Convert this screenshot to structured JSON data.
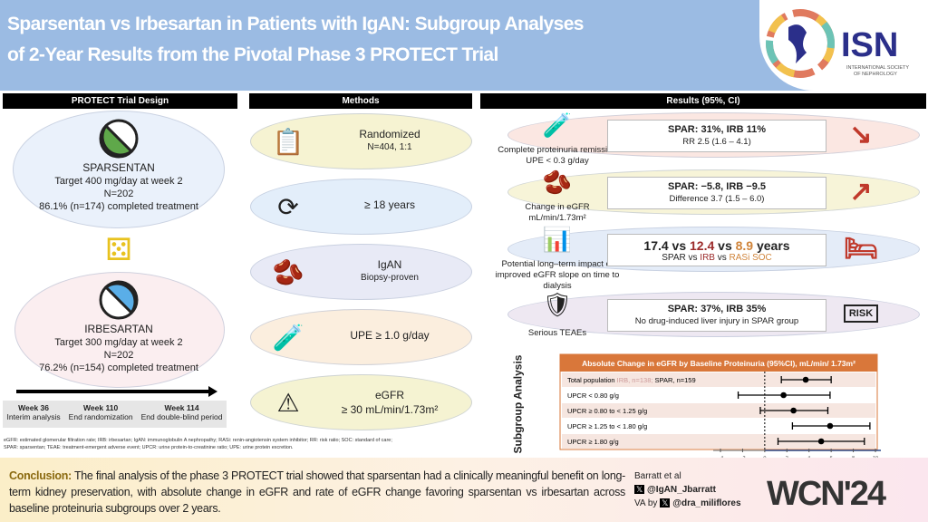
{
  "header": {
    "title_line1": "Sparsentan vs Irbesartan in Patients with IgAN: Subgroup Analyses",
    "title_line2": "of 2-Year Results from the Pivotal Phase 3 PROTECT Trial",
    "logo_text": "ISN",
    "logo_sub1": "INTERNATIONAL SOCIETY",
    "logo_sub2": "OF NEPHROLOGY"
  },
  "design": {
    "heading": "PROTECT Trial Design",
    "arms": [
      {
        "name": "SPARSENTAN",
        "target": "Target 400 mg/day at week 2",
        "n": "N=202",
        "completed": "86.1% (n=174) completed treatment",
        "color": "#5fa84a"
      },
      {
        "name": "IRBESARTAN",
        "target": "Target 300 mg/day at week 2",
        "n": "N=202",
        "completed": "76.2% (n=154) completed treatment",
        "color": "#5aaee8"
      }
    ],
    "timeline": [
      {
        "week": "Week 36",
        "label": "Interim analysis"
      },
      {
        "week": "Week 110",
        "label": "End randomization"
      },
      {
        "week": "Week 114",
        "label": "End double-blind period"
      }
    ]
  },
  "methods": {
    "heading": "Methods",
    "items": [
      {
        "title": "Randomized",
        "sub": "N=404, 1:1",
        "icon": "randomization-icon"
      },
      {
        "title": "≥ 18 years",
        "sub": "",
        "icon": "age-icon"
      },
      {
        "title": "IgAN",
        "sub": "Biopsy-proven",
        "icon": "kidney-biopsy-icon"
      },
      {
        "title": "UPE ≥ 1.0  g/day",
        "sub": "",
        "icon": "urine-test-icon"
      },
      {
        "title": "eGFR",
        "sub": "≥ 30 mL/min/1.73m²",
        "icon": "kidney-warning-icon"
      }
    ]
  },
  "results": {
    "heading": "Results (95%, CI)",
    "items": [
      {
        "label": "Complete proteinuria remission",
        "label2": "UPE < 0.3 g/day",
        "main": "SPAR: 31%, IRB 11%",
        "sub": "RR 2.5 (1.6 – 4.1)",
        "icon": "trend-down-icon"
      },
      {
        "label": "Change in eGFR",
        "label2": "mL/min/1.73m²",
        "main": "SPAR: −5.8, IRB −9.5",
        "sub": "Difference 3.7 (1.5 – 6.0)",
        "icon": "trend-up-icon"
      },
      {
        "label": "Potential long–term impact of",
        "label2": "improved eGFR slope on time to dialysis",
        "main_a": "17.4",
        "vs1": " vs ",
        "main_b": "12.4",
        "vs2": " vs ",
        "main_c": "8.9",
        "unit": " years",
        "sub_a": "SPAR",
        "svs1": " vs ",
        "sub_b": "IRB",
        "svs2": " vs ",
        "sub_c": "RASi SOC",
        "icon": "dialysis-icon"
      },
      {
        "label": "Serious TEAEs",
        "label2": "",
        "main": "SPAR: 37%, IRB 35%",
        "sub": "No drug-induced liver injury in SPAR group",
        "icon": "risk-icon",
        "risk": "RISK"
      }
    ],
    "colors": {
      "irb": "#9b2a2a",
      "rasi": "#d0843a"
    }
  },
  "chart_data": {
    "type": "forest",
    "title": "Absolute Change in eGFR by Baseline Proteinuria (95%CI), mL/min/ 1.73m²",
    "side_label": "Subgroup Analysis",
    "rows": [
      {
        "label": "Total population",
        "label_extra": " IRB, n=138; ",
        "label_extra2": "SPAR, n=159",
        "est": 3.7,
        "lo": 1.5,
        "hi": 6.0
      },
      {
        "label": "UPCR < 0.80 g/g",
        "est": 1.7,
        "lo": -2.4,
        "hi": 5.9
      },
      {
        "label": "UPCR ≥ 0.80 to < 1.25 g/g",
        "est": 2.6,
        "lo": -0.4,
        "hi": 5.7
      },
      {
        "label": "UPCR ≥ 1.25 to < 1.80 g/g",
        "est": 5.9,
        "lo": 2.5,
        "hi": 9.5
      },
      {
        "label": "UPCR ≥ 1.80 g/g",
        "est": 5.1,
        "lo": 1.2,
        "hi": 9.0
      }
    ],
    "xlim": [
      -4,
      10
    ],
    "xticks": [
      -4,
      -2,
      0,
      2,
      4,
      6,
      8,
      10
    ],
    "favors_left": "Favors IRB",
    "favors_right": "Favors SPAR",
    "header_color": "#d9773a"
  },
  "footnote": [
    "eGFR: estimated glomerular filtration rate; IRB: irbesartan; IgAN: immunoglobulin A nephropathy; RASi: renin-angiotensin system inhibitor; RR: risk ratio; SOC: standard of care;",
    "SPAR: sparsentan; TEAE: treatment-emergent adverse event; UPCR: urine protein-to-creatinine ratio; UPE: urine protein excretion."
  ],
  "conclusion": {
    "label": "Conclusion:",
    "text": " The final analysis of the phase 3 PROTECT trial showed that sparsentan had a clinically meaningful benefit on long-term kidney preservation, with absolute change in eGFR and rate of eGFR change favoring sparsentan vs irbesartan across baseline proteinuria subgroups over 2 years."
  },
  "credits": {
    "author": "Barratt et al",
    "handle1": "@IgAN_Jbarratt",
    "va": "VA by",
    "handle2": "@dra_miliflores",
    "event": "WCN'24"
  }
}
